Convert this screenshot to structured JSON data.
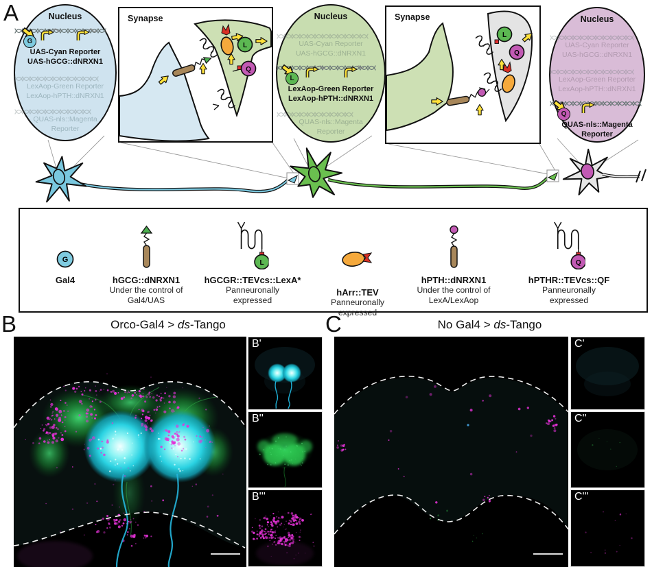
{
  "panel_a": {
    "label": "A",
    "nuclei": [
      {
        "title": "Nucleus",
        "cassettes": [
          {
            "active": true,
            "factor": "G",
            "lines": [
              "UAS-Cyan Reporter",
              "UAS-hGCG::dNRXN1"
            ]
          },
          {
            "active": false,
            "lines": [
              "LexAop-Green Reporter",
              "LexAop-hPTH::dNRXN1"
            ]
          },
          {
            "active": false,
            "lines": [
              "QUAS-nls::Magenta",
              "Reporter"
            ]
          }
        ]
      },
      {
        "title": "Nucleus",
        "cassettes": [
          {
            "active": false,
            "lines": [
              "UAS-Cyan Reporter",
              "UAS-hGCG::dNRXN1"
            ]
          },
          {
            "active": true,
            "factor": "L",
            "lines": [
              "LexAop-Green Reporter",
              "LexAop-hPTH::dNRXN1"
            ]
          },
          {
            "active": false,
            "lines": [
              "QUAS-nls::Magenta",
              "Reporter"
            ]
          }
        ]
      },
      {
        "title": "Nucleus",
        "cassettes": [
          {
            "active": false,
            "lines": [
              "UAS-Cyan Reporter",
              "UAS-hGCG::dNRXN1"
            ]
          },
          {
            "active": false,
            "lines": [
              "LexAop-Green Reporter",
              "LexAop-hPTH::dNRXN1"
            ]
          },
          {
            "active": true,
            "factor": "Q",
            "lines": [
              "QUAS-nls::Magenta",
              "Reporter"
            ]
          }
        ]
      }
    ],
    "synapses": [
      {
        "title": "Synapse"
      },
      {
        "title": "Synapse"
      }
    ],
    "factor_letters": {
      "l": "L",
      "q": "Q"
    }
  },
  "legend": {
    "items": [
      {
        "letter": "G",
        "name": "Gal4",
        "sub": [],
        "icon": "gal4-circle-icon"
      },
      {
        "name": "hGCG::dNRXN1",
        "sub": [
          "Under the control of",
          "Gal4/UAS"
        ],
        "icon": "ligand-green-tip-icon"
      },
      {
        "letter": "L",
        "name": "hGCGR::TEVcs::LexA*",
        "sub": [
          "Panneuronally",
          "expressed"
        ],
        "icon": "receptor-lexa-icon"
      },
      {
        "name": "hArr::TEV",
        "sub": [
          "Panneuronally",
          "expressed"
        ],
        "icon": "arrestin-tev-icon"
      },
      {
        "name": "hPTH::dNRXN1",
        "sub": [
          "Under the control of",
          "LexA/LexAop"
        ],
        "icon": "ligand-magenta-tip-icon"
      },
      {
        "letter": "Q",
        "name": "hPTHR::TEVcs::QF",
        "sub": [
          "Panneuronally",
          "expressed"
        ],
        "icon": "receptor-qf-icon"
      }
    ]
  },
  "panel_b": {
    "label": "B",
    "title_prefix": "Orco-Gal4 > ",
    "title_italic": "ds",
    "title_suffix": "-Tango",
    "insets": [
      "B'",
      "B''",
      "B'''"
    ]
  },
  "panel_c": {
    "label": "C",
    "title_prefix": "No Gal4 > ",
    "title_italic": "ds",
    "title_suffix": "-Tango",
    "insets": [
      "C'",
      "C''",
      "C'''"
    ]
  },
  "colors": {
    "nucleus_cyan": "#cfe3ef",
    "nucleus_green": "#c8ddb0",
    "nucleus_magenta": "#d9bcd7",
    "gal4": "#7fcbe0",
    "lexa": "#5cb852",
    "qf": "#c25ab4",
    "arrow_yellow": "#ffe13b",
    "rod_brown": "#a8875a",
    "arrestin_orange": "#f5a93c",
    "tev_red": "#d93025",
    "neuron_cyan": "#79c7de",
    "neuron_green": "#6abf4f",
    "neuron_grey": "#e6e6e6",
    "image_cyan": "#2ad2e2",
    "image_green": "#2fae46",
    "image_magenta": "#e532d8"
  }
}
